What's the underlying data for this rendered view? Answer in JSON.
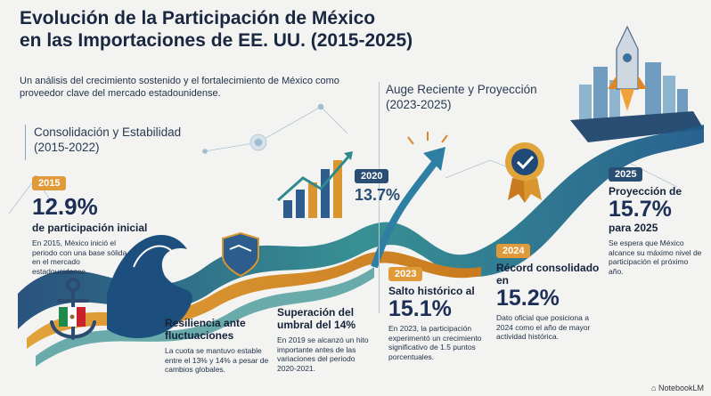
{
  "header": {
    "title_line1": "Evolución de la Participación de México",
    "title_line2": "en las Importaciones de EE. UU. (2015-2025)",
    "subtitle": "Un análisis del crecimiento sostenido y el fortalecimiento de México como proveedor clave del mercado estadounidense."
  },
  "phases": {
    "consolidation": {
      "line1": "Consolidación y Estabilidad",
      "line2": "(2015-2022)"
    },
    "recent": {
      "line1": "Auge Reciente y Proyección",
      "line2": "(2023-2025)"
    }
  },
  "milestones": {
    "m2015": {
      "year": "2015",
      "value": "12.9%",
      "heading": "de participación inicial",
      "body": "En 2015, México inició el periodo con una base sólida en el mercado estadounidense."
    },
    "resilience": {
      "heading_line1": "Resiliencia ante",
      "heading_line2": "fluctuaciones",
      "body": "La cuota se mantuvo estable entre el 13% y 14% a pesar de cambios globales."
    },
    "threshold": {
      "heading_line1": "Superación del",
      "heading_line2": "umbral del 14%",
      "body": "En 2019 se alcanzó un hito importante antes de las variaciones del periodo 2020-2021."
    },
    "m2020": {
      "year": "2020",
      "value": "13.7%"
    },
    "m2023": {
      "year": "2023",
      "heading": "Salto histórico al",
      "value": "15.1%",
      "body": "En 2023, la participación experimentó un crecimiento significativo de 1.5 puntos porcentuales."
    },
    "m2024": {
      "year": "2024",
      "heading": "Récord consolidado en",
      "value": "15.2%",
      "body": "Dato oficial que posiciona a 2024 como el año de mayor actividad histórica."
    },
    "m2025": {
      "year": "2025",
      "heading": "Proyección de",
      "value": "15.7%",
      "heading2": "para 2025",
      "body": "Se espera que México alcance su máximo nivel de participación el próximo año."
    }
  },
  "icons": [
    "anchor-icon",
    "mexico-flag-icon",
    "shield-icon",
    "bar-chart-icon",
    "growth-arrow-icon",
    "award-badge-icon",
    "rocket-icon",
    "city-skyline-icon",
    "wave-icon"
  ],
  "colors": {
    "navy": "#1d2f57",
    "teal": "#2e8a8c",
    "gold": "#d9962e",
    "orange": "#e0862a",
    "year_badge": "#e19a3a"
  },
  "footer": {
    "brand": "NotebookLM"
  }
}
